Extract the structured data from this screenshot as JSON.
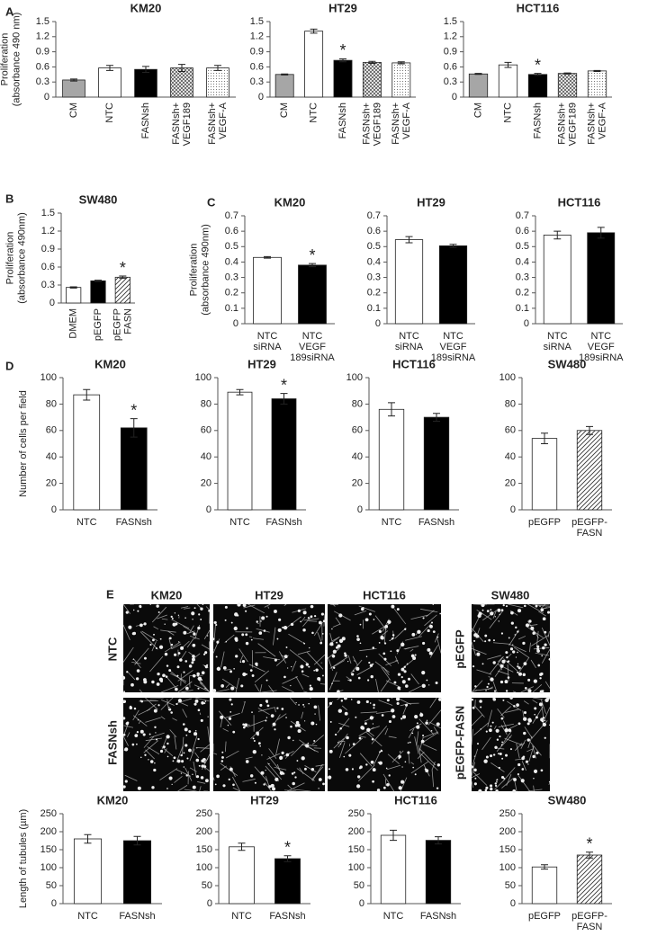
{
  "panel_labels": [
    "A",
    "B",
    "C",
    "D",
    "E"
  ],
  "images": {
    "columns": [
      "KM20",
      "HT29",
      "HCT116",
      "SW480"
    ],
    "rows": [
      "NTC",
      "FASNsh"
    ],
    "sw480_rows": [
      "pEGFP",
      "pEGFP-FASN"
    ]
  },
  "chart_data": [
    {
      "type": "bar",
      "title": "KM20",
      "ylabel": "Proliferation\n(absorbance 490 nm)",
      "rotate_labels": true,
      "categories": [
        "CM",
        "NTC",
        "FASNsh",
        "FASNsh+\nVEGF189",
        "FASNsh+\nVEGF-A"
      ],
      "values": [
        0.34,
        0.58,
        0.55,
        0.58,
        0.58
      ],
      "errors": [
        0.02,
        0.05,
        0.06,
        0.07,
        0.05
      ],
      "marks": [
        null,
        null,
        null,
        null,
        null
      ],
      "fills": [
        "#a6a6a6",
        "#ffffff",
        "#000000",
        "crosshatch",
        "stipple"
      ],
      "ylim": [
        0,
        1.5
      ],
      "yticks": [
        0,
        0.3,
        0.6,
        0.9,
        1.2,
        1.5
      ]
    },
    {
      "type": "bar",
      "title": "HT29",
      "rotate_labels": true,
      "categories": [
        "CM",
        "NTC",
        "FASNsh",
        "FASNsh+\nVEGF189",
        "FASNsh+\nVEGF-A"
      ],
      "values": [
        0.45,
        1.31,
        0.73,
        0.69,
        0.68
      ],
      "errors": [
        0.01,
        0.04,
        0.03,
        0.02,
        0.02
      ],
      "marks": [
        null,
        null,
        "*",
        null,
        null
      ],
      "fills": [
        "#a6a6a6",
        "#ffffff",
        "#000000",
        "crosshatch",
        "stipple"
      ],
      "ylim": [
        0,
        1.5
      ],
      "yticks": [
        0,
        0.3,
        0.6,
        0.9,
        1.2,
        1.5
      ]
    },
    {
      "type": "bar",
      "title": "HCT116",
      "rotate_labels": true,
      "categories": [
        "CM",
        "NTC",
        "FASNsh",
        "FASNsh+\nVEGF189",
        "FASNsh+\nVEGF-A"
      ],
      "values": [
        0.46,
        0.64,
        0.45,
        0.47,
        0.52
      ],
      "errors": [
        0.01,
        0.05,
        0.02,
        0.01,
        0.01
      ],
      "marks": [
        null,
        null,
        "*",
        null,
        null
      ],
      "fills": [
        "#a6a6a6",
        "#ffffff",
        "#000000",
        "crosshatch",
        "stipple"
      ],
      "ylim": [
        0,
        1.5
      ],
      "yticks": [
        0,
        0.3,
        0.6,
        0.9,
        1.2,
        1.5
      ]
    },
    {
      "type": "bar",
      "title": "SW480",
      "ylabel": "Proliferation\n(absorbance 490nm)",
      "rotate_labels": true,
      "categories": [
        "DMEM",
        "pEGFP",
        "pEGFP\nFASN"
      ],
      "values": [
        0.26,
        0.37,
        0.43
      ],
      "errors": [
        0.01,
        0.01,
        0.02
      ],
      "marks": [
        null,
        null,
        "*"
      ],
      "fills": [
        "#ffffff",
        "#000000",
        "diagonal"
      ],
      "ylim": [
        0,
        1.5
      ],
      "yticks": [
        0,
        0.3,
        0.6,
        0.9,
        1.2,
        1.5
      ]
    },
    {
      "type": "bar",
      "title": "KM20",
      "ylabel": "Proliferation\n(absorbance 490nm)",
      "categories": [
        "NTC\nsiRNA",
        "NTC\nVEGF\n189siRNA"
      ],
      "values": [
        0.43,
        0.38
      ],
      "errors": [
        0.005,
        0.01
      ],
      "marks": [
        null,
        "*"
      ],
      "fills": [
        "#ffffff",
        "#000000"
      ],
      "ylim": [
        0,
        0.7
      ],
      "yticks": [
        0,
        0.1,
        0.2,
        0.3,
        0.4,
        0.5,
        0.6,
        0.7
      ]
    },
    {
      "type": "bar",
      "title": "HT29",
      "categories": [
        "NTC\nsiRNA",
        "NTC\nVEGF\n189siRNA"
      ],
      "values": [
        0.545,
        0.505
      ],
      "errors": [
        0.02,
        0.01
      ],
      "marks": [
        null,
        null
      ],
      "fills": [
        "#ffffff",
        "#000000"
      ],
      "ylim": [
        0,
        0.7
      ],
      "yticks": [
        0,
        0.1,
        0.2,
        0.3,
        0.4,
        0.5,
        0.6,
        0.7
      ]
    },
    {
      "type": "bar",
      "title": "HCT116",
      "categories": [
        "NTC\nsiRNA",
        "NTC\nVEGF\n189siRNA"
      ],
      "values": [
        0.575,
        0.59
      ],
      "errors": [
        0.025,
        0.035
      ],
      "marks": [
        null,
        null
      ],
      "fills": [
        "#ffffff",
        "#000000"
      ],
      "ylim": [
        0,
        0.7
      ],
      "yticks": [
        0,
        0.1,
        0.2,
        0.3,
        0.4,
        0.5,
        0.6,
        0.7
      ]
    },
    {
      "type": "bar",
      "title": "KM20",
      "ylabel": "Number of cells per field",
      "categories": [
        "NTC",
        "FASNsh"
      ],
      "values": [
        87,
        62
      ],
      "errors": [
        4,
        7
      ],
      "marks": [
        null,
        "*"
      ],
      "fills": [
        "#ffffff",
        "#000000"
      ],
      "ylim": [
        0,
        100
      ],
      "yticks": [
        0,
        20,
        40,
        60,
        80,
        100
      ]
    },
    {
      "type": "bar",
      "title": "HT29",
      "categories": [
        "NTC",
        "FASNsh"
      ],
      "values": [
        89,
        84
      ],
      "errors": [
        2,
        4
      ],
      "marks": [
        null,
        "*"
      ],
      "fills": [
        "#ffffff",
        "#000000"
      ],
      "ylim": [
        0,
        100
      ],
      "yticks": [
        0,
        20,
        40,
        60,
        80,
        100
      ]
    },
    {
      "type": "bar",
      "title": "HCT116",
      "categories": [
        "NTC",
        "FASNsh"
      ],
      "values": [
        76,
        70
      ],
      "errors": [
        5,
        3
      ],
      "marks": [
        null,
        null
      ],
      "fills": [
        "#ffffff",
        "#000000"
      ],
      "ylim": [
        0,
        100
      ],
      "yticks": [
        0,
        20,
        40,
        60,
        80,
        100
      ]
    },
    {
      "type": "bar",
      "title": "SW480",
      "categories": [
        "pEGFP",
        "pEGFP-\nFASN"
      ],
      "values": [
        54,
        60
      ],
      "errors": [
        4,
        3
      ],
      "marks": [
        null,
        null
      ],
      "fills": [
        "#ffffff",
        "diagonal"
      ],
      "ylim": [
        0,
        100
      ],
      "yticks": [
        0,
        20,
        40,
        60,
        80,
        100
      ]
    },
    {
      "type": "bar",
      "title": "KM20",
      "ylabel": "Length of tubules (µm)",
      "categories": [
        "NTC",
        "FASNsh"
      ],
      "values": [
        180,
        175
      ],
      "errors": [
        12,
        12
      ],
      "marks": [
        null,
        null
      ],
      "fills": [
        "#ffffff",
        "#000000"
      ],
      "ylim": [
        0,
        250
      ],
      "yticks": [
        0,
        50,
        100,
        150,
        200,
        250
      ]
    },
    {
      "type": "bar",
      "title": "HT29",
      "categories": [
        "NTC",
        "FASNsh"
      ],
      "values": [
        158,
        125
      ],
      "errors": [
        10,
        8
      ],
      "marks": [
        null,
        "*"
      ],
      "fills": [
        "#ffffff",
        "#000000"
      ],
      "ylim": [
        0,
        250
      ],
      "yticks": [
        0,
        50,
        100,
        150,
        200,
        250
      ]
    },
    {
      "type": "bar",
      "title": "HCT116",
      "categories": [
        "NTC",
        "FASNsh"
      ],
      "values": [
        190,
        176
      ],
      "errors": [
        14,
        10
      ],
      "marks": [
        null,
        null
      ],
      "fills": [
        "#ffffff",
        "#000000"
      ],
      "ylim": [
        0,
        250
      ],
      "yticks": [
        0,
        50,
        100,
        150,
        200,
        250
      ]
    },
    {
      "type": "bar",
      "title": "SW480",
      "categories": [
        "pEGFP",
        "pEGFP-\nFASN"
      ],
      "values": [
        102,
        135
      ],
      "errors": [
        6,
        8
      ],
      "marks": [
        null,
        "*"
      ],
      "fills": [
        "#ffffff",
        "diagonal"
      ],
      "ylim": [
        0,
        250
      ],
      "yticks": [
        0,
        50,
        100,
        150,
        200,
        250
      ]
    }
  ]
}
